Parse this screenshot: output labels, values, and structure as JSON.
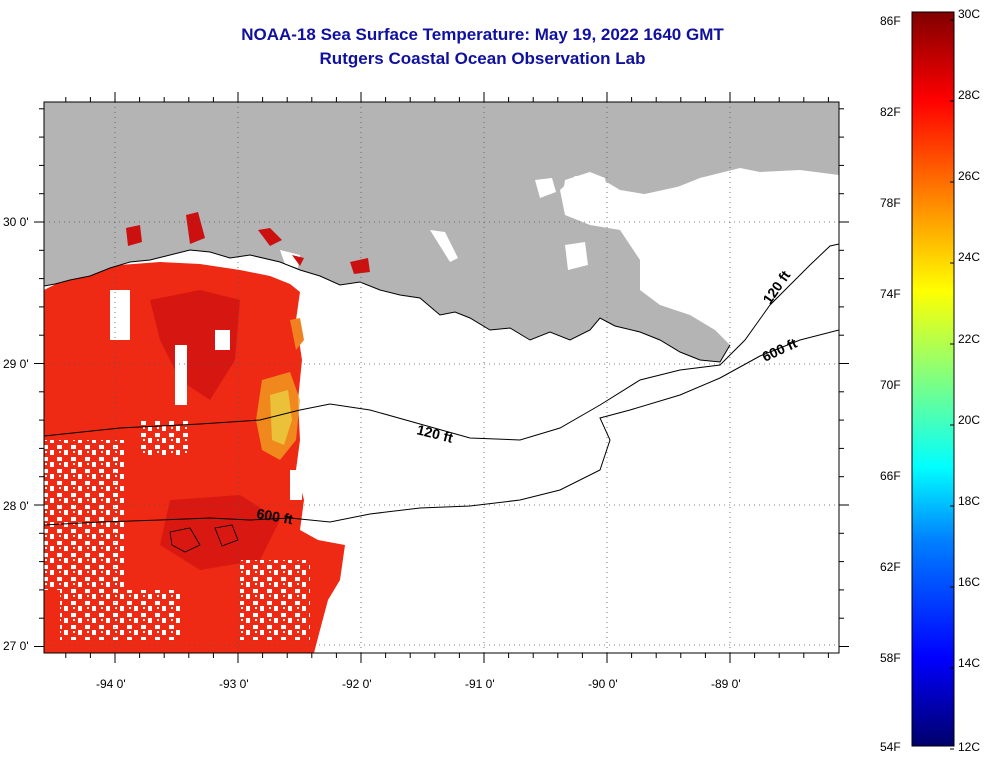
{
  "title": {
    "line1": "NOAA-18 Sea Surface Temperature:  May 19, 2022 1640 GMT",
    "line2": "Rutgers Coastal Ocean Observation Lab"
  },
  "map": {
    "lat_labels": [
      "30 0'",
      "29 0'",
      "28 0'",
      "27 0'"
    ],
    "lon_labels": [
      "-94 0'",
      "-93 0'",
      "-92 0'",
      "-91 0'",
      "-90 0'",
      "-89 0'"
    ],
    "contours": [
      {
        "label": "120 ft"
      },
      {
        "label": "600 ft"
      },
      {
        "label": "120 ft"
      },
      {
        "label": "600 ft"
      }
    ]
  },
  "colorbar": {
    "fahrenheit_labels": [
      "86F",
      "82F",
      "78F",
      "74F",
      "70F",
      "66F",
      "62F",
      "58F",
      "54F"
    ],
    "celsius_labels": [
      "30C",
      "28C",
      "26C",
      "24C",
      "22C",
      "20C",
      "18C",
      "16C",
      "14C",
      "12C"
    ],
    "colors": [
      "#00008f",
      "#0000ff",
      "#0080ff",
      "#00ffff",
      "#80ff80",
      "#ffff00",
      "#ff8000",
      "#ff0000",
      "#800000"
    ]
  },
  "colors": {
    "land": "#b4b4b4",
    "sst_warm": "#ee2a14",
    "sst_hot": "#cc0e10",
    "title": "#1010a0"
  }
}
